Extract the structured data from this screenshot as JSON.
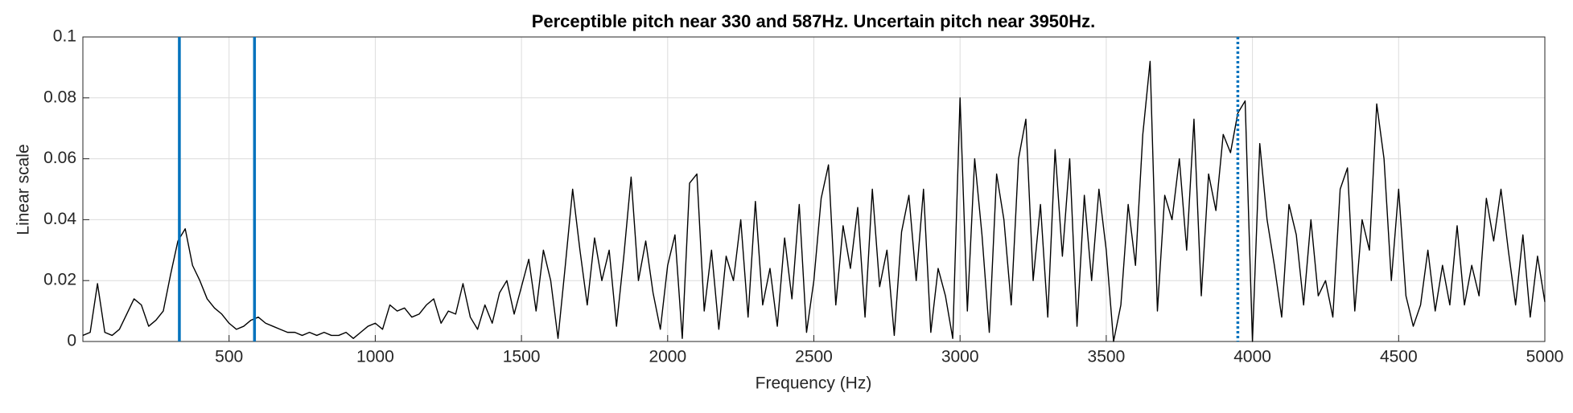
{
  "chart_data": {
    "type": "line",
    "title": "Perceptible pitch near 330 and 587Hz. Uncertain pitch near 3950Hz.",
    "xlabel": "Frequency (Hz)",
    "ylabel": "Linear scale",
    "xlim": [
      0,
      5000
    ],
    "ylim": [
      0,
      0.1
    ],
    "xticks": [
      500,
      1000,
      1500,
      2000,
      2500,
      3000,
      3500,
      4000,
      4500,
      5000
    ],
    "yticks": [
      0,
      0.02,
      0.04,
      0.06,
      0.08,
      0.1
    ],
    "grid": true,
    "color": "#000000",
    "x": [
      0,
      25,
      50,
      75,
      100,
      125,
      150,
      175,
      200,
      225,
      250,
      275,
      300,
      325,
      350,
      375,
      400,
      425,
      450,
      475,
      500,
      525,
      550,
      575,
      600,
      625,
      650,
      675,
      700,
      725,
      750,
      775,
      800,
      825,
      850,
      875,
      900,
      925,
      950,
      975,
      1000,
      1025,
      1050,
      1075,
      1100,
      1125,
      1150,
      1175,
      1200,
      1225,
      1250,
      1275,
      1300,
      1325,
      1350,
      1375,
      1400,
      1425,
      1450,
      1475,
      1500,
      1525,
      1550,
      1575,
      1600,
      1625,
      1650,
      1675,
      1700,
      1725,
      1750,
      1775,
      1800,
      1825,
      1850,
      1875,
      1900,
      1925,
      1950,
      1975,
      2000,
      2025,
      2050,
      2075,
      2100,
      2125,
      2150,
      2175,
      2200,
      2225,
      2250,
      2275,
      2300,
      2325,
      2350,
      2375,
      2400,
      2425,
      2450,
      2475,
      2500,
      2525,
      2550,
      2575,
      2600,
      2625,
      2650,
      2675,
      2700,
      2725,
      2750,
      2775,
      2800,
      2825,
      2850,
      2875,
      2900,
      2925,
      2950,
      2975,
      3000,
      3025,
      3050,
      3075,
      3100,
      3125,
      3150,
      3175,
      3200,
      3225,
      3250,
      3275,
      3300,
      3325,
      3350,
      3375,
      3400,
      3425,
      3450,
      3475,
      3500,
      3525,
      3550,
      3575,
      3600,
      3625,
      3650,
      3675,
      3700,
      3725,
      3750,
      3775,
      3800,
      3825,
      3850,
      3875,
      3900,
      3925,
      3950,
      3975,
      4000,
      4025,
      4050,
      4075,
      4100,
      4125,
      4150,
      4175,
      4200,
      4225,
      4250,
      4275,
      4300,
      4325,
      4350,
      4375,
      4400,
      4425,
      4450,
      4475,
      4500,
      4525,
      4550,
      4575,
      4600,
      4625,
      4650,
      4675,
      4700,
      4725,
      4750,
      4775,
      4800,
      4825,
      4850,
      4875,
      4900,
      4925,
      4950,
      4975,
      5000
    ],
    "values": [
      0.002,
      0.003,
      0.019,
      0.003,
      0.002,
      0.004,
      0.009,
      0.014,
      0.012,
      0.005,
      0.007,
      0.01,
      0.022,
      0.033,
      0.037,
      0.025,
      0.02,
      0.014,
      0.011,
      0.009,
      0.006,
      0.004,
      0.005,
      0.007,
      0.008,
      0.006,
      0.005,
      0.004,
      0.003,
      0.003,
      0.002,
      0.003,
      0.002,
      0.003,
      0.002,
      0.002,
      0.003,
      0.001,
      0.003,
      0.005,
      0.006,
      0.004,
      0.012,
      0.01,
      0.011,
      0.008,
      0.009,
      0.012,
      0.014,
      0.006,
      0.01,
      0.009,
      0.019,
      0.008,
      0.004,
      0.012,
      0.006,
      0.016,
      0.02,
      0.009,
      0.018,
      0.027,
      0.01,
      0.03,
      0.02,
      0.001,
      0.025,
      0.05,
      0.03,
      0.012,
      0.034,
      0.02,
      0.03,
      0.005,
      0.028,
      0.054,
      0.02,
      0.033,
      0.016,
      0.004,
      0.025,
      0.035,
      0.001,
      0.052,
      0.055,
      0.01,
      0.03,
      0.004,
      0.028,
      0.02,
      0.04,
      0.008,
      0.046,
      0.012,
      0.024,
      0.005,
      0.034,
      0.014,
      0.045,
      0.003,
      0.02,
      0.047,
      0.058,
      0.012,
      0.038,
      0.024,
      0.044,
      0.008,
      0.05,
      0.018,
      0.03,
      0.002,
      0.036,
      0.048,
      0.02,
      0.05,
      0.003,
      0.024,
      0.015,
      0.001,
      0.08,
      0.01,
      0.06,
      0.035,
      0.003,
      0.055,
      0.04,
      0.012,
      0.06,
      0.073,
      0.02,
      0.045,
      0.008,
      0.063,
      0.028,
      0.06,
      0.005,
      0.048,
      0.02,
      0.05,
      0.03,
      0.0,
      0.012,
      0.045,
      0.025,
      0.068,
      0.092,
      0.01,
      0.048,
      0.04,
      0.06,
      0.03,
      0.073,
      0.015,
      0.055,
      0.043,
      0.068,
      0.062,
      0.075,
      0.079,
      0.0,
      0.065,
      0.04,
      0.025,
      0.008,
      0.045,
      0.035,
      0.012,
      0.04,
      0.015,
      0.02,
      0.008,
      0.05,
      0.057,
      0.01,
      0.04,
      0.03,
      0.078,
      0.06,
      0.02,
      0.05,
      0.015,
      0.005,
      0.012,
      0.03,
      0.01,
      0.025,
      0.012,
      0.038,
      0.012,
      0.025,
      0.015,
      0.047,
      0.033,
      0.05,
      0.03,
      0.012,
      0.035,
      0.008,
      0.028,
      0.013
    ],
    "vlines": [
      {
        "x": 330,
        "style": "solid"
      },
      {
        "x": 587,
        "style": "solid"
      },
      {
        "x": 3950,
        "style": "dotted"
      }
    ],
    "vline_color": "#0072bd"
  }
}
